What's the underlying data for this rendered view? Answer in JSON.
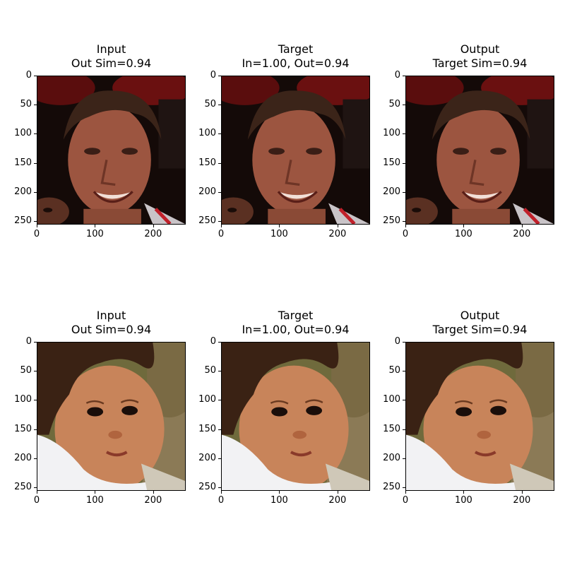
{
  "panels": [
    {
      "title_line1": "Input",
      "title_line2": "Out Sim=0.94",
      "image": "face-adult-man-smiling"
    },
    {
      "title_line1": "Target",
      "title_line2": "In=1.00, Out=0.94",
      "image": "face-adult-man-smiling"
    },
    {
      "title_line1": "Output",
      "title_line2": "Target Sim=0.94",
      "image": "face-adult-man-smiling"
    },
    {
      "title_line1": "Input",
      "title_line2": "Out Sim=0.94",
      "image": "face-toddler-curly-hair"
    },
    {
      "title_line1": "Target",
      "title_line2": "In=1.00, Out=0.94",
      "image": "face-toddler-curly-hair"
    },
    {
      "title_line1": "Output",
      "title_line2": "Target Sim=0.94",
      "image": "face-toddler-curly-hair"
    }
  ],
  "axis": {
    "yticks": [
      "0",
      "50",
      "100",
      "150",
      "200",
      "250"
    ],
    "xticks": [
      "0",
      "100",
      "200"
    ]
  }
}
